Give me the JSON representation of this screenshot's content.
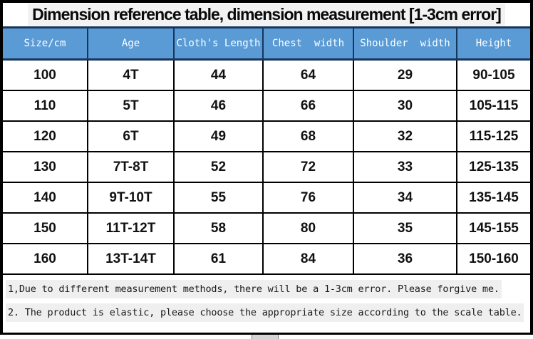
{
  "title": "Dimension reference table, dimension measurement [1-3cm error]",
  "table": {
    "headers": [
      "Size/cm",
      "Age",
      "Cloth's Length",
      "Chest  width",
      "Shoulder  width",
      "Height"
    ],
    "rows": [
      [
        "100",
        "4T",
        "44",
        "64",
        "29",
        "90-105"
      ],
      [
        "110",
        "5T",
        "46",
        "66",
        "30",
        "105-115"
      ],
      [
        "120",
        "6T",
        "49",
        "68",
        "32",
        "115-125"
      ],
      [
        "130",
        "7T-8T",
        "52",
        "72",
        "33",
        "125-135"
      ],
      [
        "140",
        "9T-10T",
        "55",
        "76",
        "34",
        "135-145"
      ],
      [
        "150",
        "11T-12T",
        "58",
        "80",
        "35",
        "145-155"
      ],
      [
        "160",
        "13T-14T",
        "61",
        "84",
        "36",
        "150-160"
      ]
    ]
  },
  "notes": [
    "1,Due to different measurement methods, there will be a 1-3cm error. Please forgive me.",
    "2. The product is elastic, please choose the appropriate size according to the scale table."
  ],
  "colors": {
    "header_bg": "#5B9BD5",
    "header_text": "#FFFFFF",
    "header_border": "#16365C",
    "grid_border": "#000000",
    "note_highlight": "#EFEFEF",
    "title_highlight": "#F2F2F2"
  }
}
